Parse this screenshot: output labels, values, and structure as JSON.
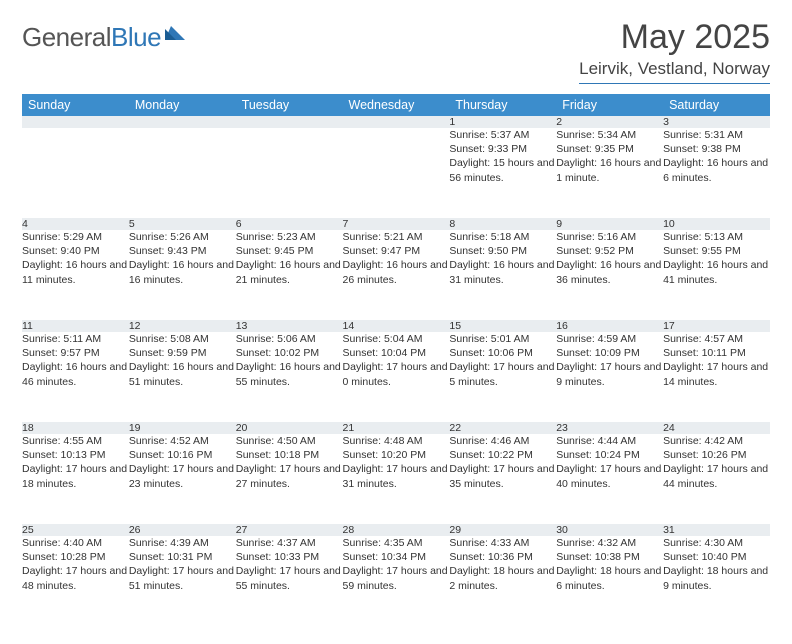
{
  "brand": {
    "word1": "General",
    "word2": "Blue"
  },
  "title": "May 2025",
  "location": "Leirvik, Vestland, Norway",
  "colors": {
    "accent": "#2f77b6",
    "header_bg": "#3c8dcc",
    "daynum_bg": "#e9edf0"
  },
  "day_headers": [
    "Sunday",
    "Monday",
    "Tuesday",
    "Wednesday",
    "Thursday",
    "Friday",
    "Saturday"
  ],
  "weeks": [
    [
      null,
      null,
      null,
      null,
      {
        "n": "1",
        "rise": "Sunrise: 5:37 AM",
        "set": "Sunset: 9:33 PM",
        "dl": "Daylight: 15 hours and 56 minutes."
      },
      {
        "n": "2",
        "rise": "Sunrise: 5:34 AM",
        "set": "Sunset: 9:35 PM",
        "dl": "Daylight: 16 hours and 1 minute."
      },
      {
        "n": "3",
        "rise": "Sunrise: 5:31 AM",
        "set": "Sunset: 9:38 PM",
        "dl": "Daylight: 16 hours and 6 minutes."
      }
    ],
    [
      {
        "n": "4",
        "rise": "Sunrise: 5:29 AM",
        "set": "Sunset: 9:40 PM",
        "dl": "Daylight: 16 hours and 11 minutes."
      },
      {
        "n": "5",
        "rise": "Sunrise: 5:26 AM",
        "set": "Sunset: 9:43 PM",
        "dl": "Daylight: 16 hours and 16 minutes."
      },
      {
        "n": "6",
        "rise": "Sunrise: 5:23 AM",
        "set": "Sunset: 9:45 PM",
        "dl": "Daylight: 16 hours and 21 minutes."
      },
      {
        "n": "7",
        "rise": "Sunrise: 5:21 AM",
        "set": "Sunset: 9:47 PM",
        "dl": "Daylight: 16 hours and 26 minutes."
      },
      {
        "n": "8",
        "rise": "Sunrise: 5:18 AM",
        "set": "Sunset: 9:50 PM",
        "dl": "Daylight: 16 hours and 31 minutes."
      },
      {
        "n": "9",
        "rise": "Sunrise: 5:16 AM",
        "set": "Sunset: 9:52 PM",
        "dl": "Daylight: 16 hours and 36 minutes."
      },
      {
        "n": "10",
        "rise": "Sunrise: 5:13 AM",
        "set": "Sunset: 9:55 PM",
        "dl": "Daylight: 16 hours and 41 minutes."
      }
    ],
    [
      {
        "n": "11",
        "rise": "Sunrise: 5:11 AM",
        "set": "Sunset: 9:57 PM",
        "dl": "Daylight: 16 hours and 46 minutes."
      },
      {
        "n": "12",
        "rise": "Sunrise: 5:08 AM",
        "set": "Sunset: 9:59 PM",
        "dl": "Daylight: 16 hours and 51 minutes."
      },
      {
        "n": "13",
        "rise": "Sunrise: 5:06 AM",
        "set": "Sunset: 10:02 PM",
        "dl": "Daylight: 16 hours and 55 minutes."
      },
      {
        "n": "14",
        "rise": "Sunrise: 5:04 AM",
        "set": "Sunset: 10:04 PM",
        "dl": "Daylight: 17 hours and 0 minutes."
      },
      {
        "n": "15",
        "rise": "Sunrise: 5:01 AM",
        "set": "Sunset: 10:06 PM",
        "dl": "Daylight: 17 hours and 5 minutes."
      },
      {
        "n": "16",
        "rise": "Sunrise: 4:59 AM",
        "set": "Sunset: 10:09 PM",
        "dl": "Daylight: 17 hours and 9 minutes."
      },
      {
        "n": "17",
        "rise": "Sunrise: 4:57 AM",
        "set": "Sunset: 10:11 PM",
        "dl": "Daylight: 17 hours and 14 minutes."
      }
    ],
    [
      {
        "n": "18",
        "rise": "Sunrise: 4:55 AM",
        "set": "Sunset: 10:13 PM",
        "dl": "Daylight: 17 hours and 18 minutes."
      },
      {
        "n": "19",
        "rise": "Sunrise: 4:52 AM",
        "set": "Sunset: 10:16 PM",
        "dl": "Daylight: 17 hours and 23 minutes."
      },
      {
        "n": "20",
        "rise": "Sunrise: 4:50 AM",
        "set": "Sunset: 10:18 PM",
        "dl": "Daylight: 17 hours and 27 minutes."
      },
      {
        "n": "21",
        "rise": "Sunrise: 4:48 AM",
        "set": "Sunset: 10:20 PM",
        "dl": "Daylight: 17 hours and 31 minutes."
      },
      {
        "n": "22",
        "rise": "Sunrise: 4:46 AM",
        "set": "Sunset: 10:22 PM",
        "dl": "Daylight: 17 hours and 35 minutes."
      },
      {
        "n": "23",
        "rise": "Sunrise: 4:44 AM",
        "set": "Sunset: 10:24 PM",
        "dl": "Daylight: 17 hours and 40 minutes."
      },
      {
        "n": "24",
        "rise": "Sunrise: 4:42 AM",
        "set": "Sunset: 10:26 PM",
        "dl": "Daylight: 17 hours and 44 minutes."
      }
    ],
    [
      {
        "n": "25",
        "rise": "Sunrise: 4:40 AM",
        "set": "Sunset: 10:28 PM",
        "dl": "Daylight: 17 hours and 48 minutes."
      },
      {
        "n": "26",
        "rise": "Sunrise: 4:39 AM",
        "set": "Sunset: 10:31 PM",
        "dl": "Daylight: 17 hours and 51 minutes."
      },
      {
        "n": "27",
        "rise": "Sunrise: 4:37 AM",
        "set": "Sunset: 10:33 PM",
        "dl": "Daylight: 17 hours and 55 minutes."
      },
      {
        "n": "28",
        "rise": "Sunrise: 4:35 AM",
        "set": "Sunset: 10:34 PM",
        "dl": "Daylight: 17 hours and 59 minutes."
      },
      {
        "n": "29",
        "rise": "Sunrise: 4:33 AM",
        "set": "Sunset: 10:36 PM",
        "dl": "Daylight: 18 hours and 2 minutes."
      },
      {
        "n": "30",
        "rise": "Sunrise: 4:32 AM",
        "set": "Sunset: 10:38 PM",
        "dl": "Daylight: 18 hours and 6 minutes."
      },
      {
        "n": "31",
        "rise": "Sunrise: 4:30 AM",
        "set": "Sunset: 10:40 PM",
        "dl": "Daylight: 18 hours and 9 minutes."
      }
    ]
  ]
}
